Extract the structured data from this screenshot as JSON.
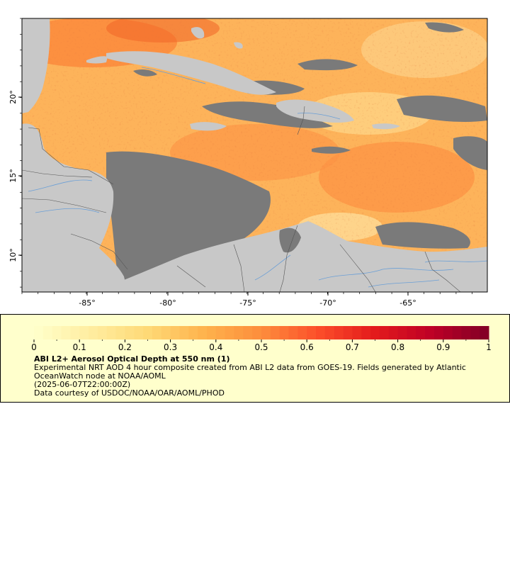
{
  "map": {
    "x_ticks": [
      "-85°",
      "-80°",
      "-75°",
      "-70°",
      "-65°"
    ],
    "y_ticks": [
      "20°",
      "15°",
      "10°"
    ],
    "colors": {
      "land": "#c8c8c8",
      "no_data": "#7a7a7a",
      "rivers": "#6b9fd6",
      "borders": "#555555"
    }
  },
  "legend": {
    "colorbar_labels": [
      "0",
      "0.1",
      "0.2",
      "0.3",
      "0.4",
      "0.5",
      "0.6",
      "0.7",
      "0.8",
      "0.9",
      "1"
    ],
    "colorbar_colors": [
      "#ffffcc",
      "#ffeda0",
      "#fed976",
      "#feb24c",
      "#fd8d3c",
      "#fc4e2a",
      "#e31a1c",
      "#bd0026",
      "#800026"
    ],
    "title": "ABI L2+ Aerosol Optical Depth at 550 nm (1)",
    "line1": "Experimental NRT AOD 4 hour composite created from ABI L2 data from GOES-19. Fields generated by Atlantic",
    "line2": "OceanWatch node at NOAA/AOML",
    "line3": "(2025-06-07T22:00:00Z)",
    "line4": "Data courtesy of USDOC/NOAA/OAR/AOML/PHOD",
    "background": "#ffffcc"
  }
}
